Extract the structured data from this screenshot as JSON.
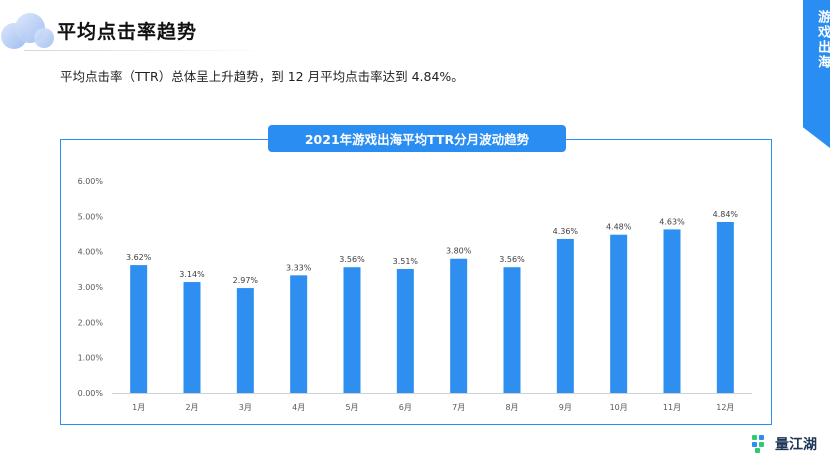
{
  "header": {
    "title": "平均点击率趋势",
    "side_tab": "游戏出海"
  },
  "summary": "平均点击率（TTR）总体呈上升趋势，到 12 月平均点击率达到 4.84%。",
  "brand": {
    "text": "量江湖"
  },
  "colors": {
    "accent": "#2a8df2",
    "bar": "#2f8ff0"
  },
  "chart_data": {
    "type": "bar",
    "title": "2021年游戏出海平均TTR分月波动趋势",
    "categories": [
      "1月",
      "2月",
      "3月",
      "4月",
      "5月",
      "6月",
      "7月",
      "8月",
      "9月",
      "10月",
      "11月",
      "12月"
    ],
    "values": [
      3.62,
      3.14,
      2.97,
      3.33,
      3.56,
      3.51,
      3.8,
      3.56,
      4.36,
      4.48,
      4.63,
      4.84
    ],
    "value_labels": [
      "3.62%",
      "3.14%",
      "2.97%",
      "3.33%",
      "3.56%",
      "3.51%",
      "3.80%",
      "3.56%",
      "4.36%",
      "4.48%",
      "4.63%",
      "4.84%"
    ],
    "yticks": [
      "0.00%",
      "1.00%",
      "2.00%",
      "3.00%",
      "4.00%",
      "5.00%",
      "6.00%"
    ],
    "ylim": [
      0,
      6
    ],
    "grid": false,
    "legend": "none"
  }
}
